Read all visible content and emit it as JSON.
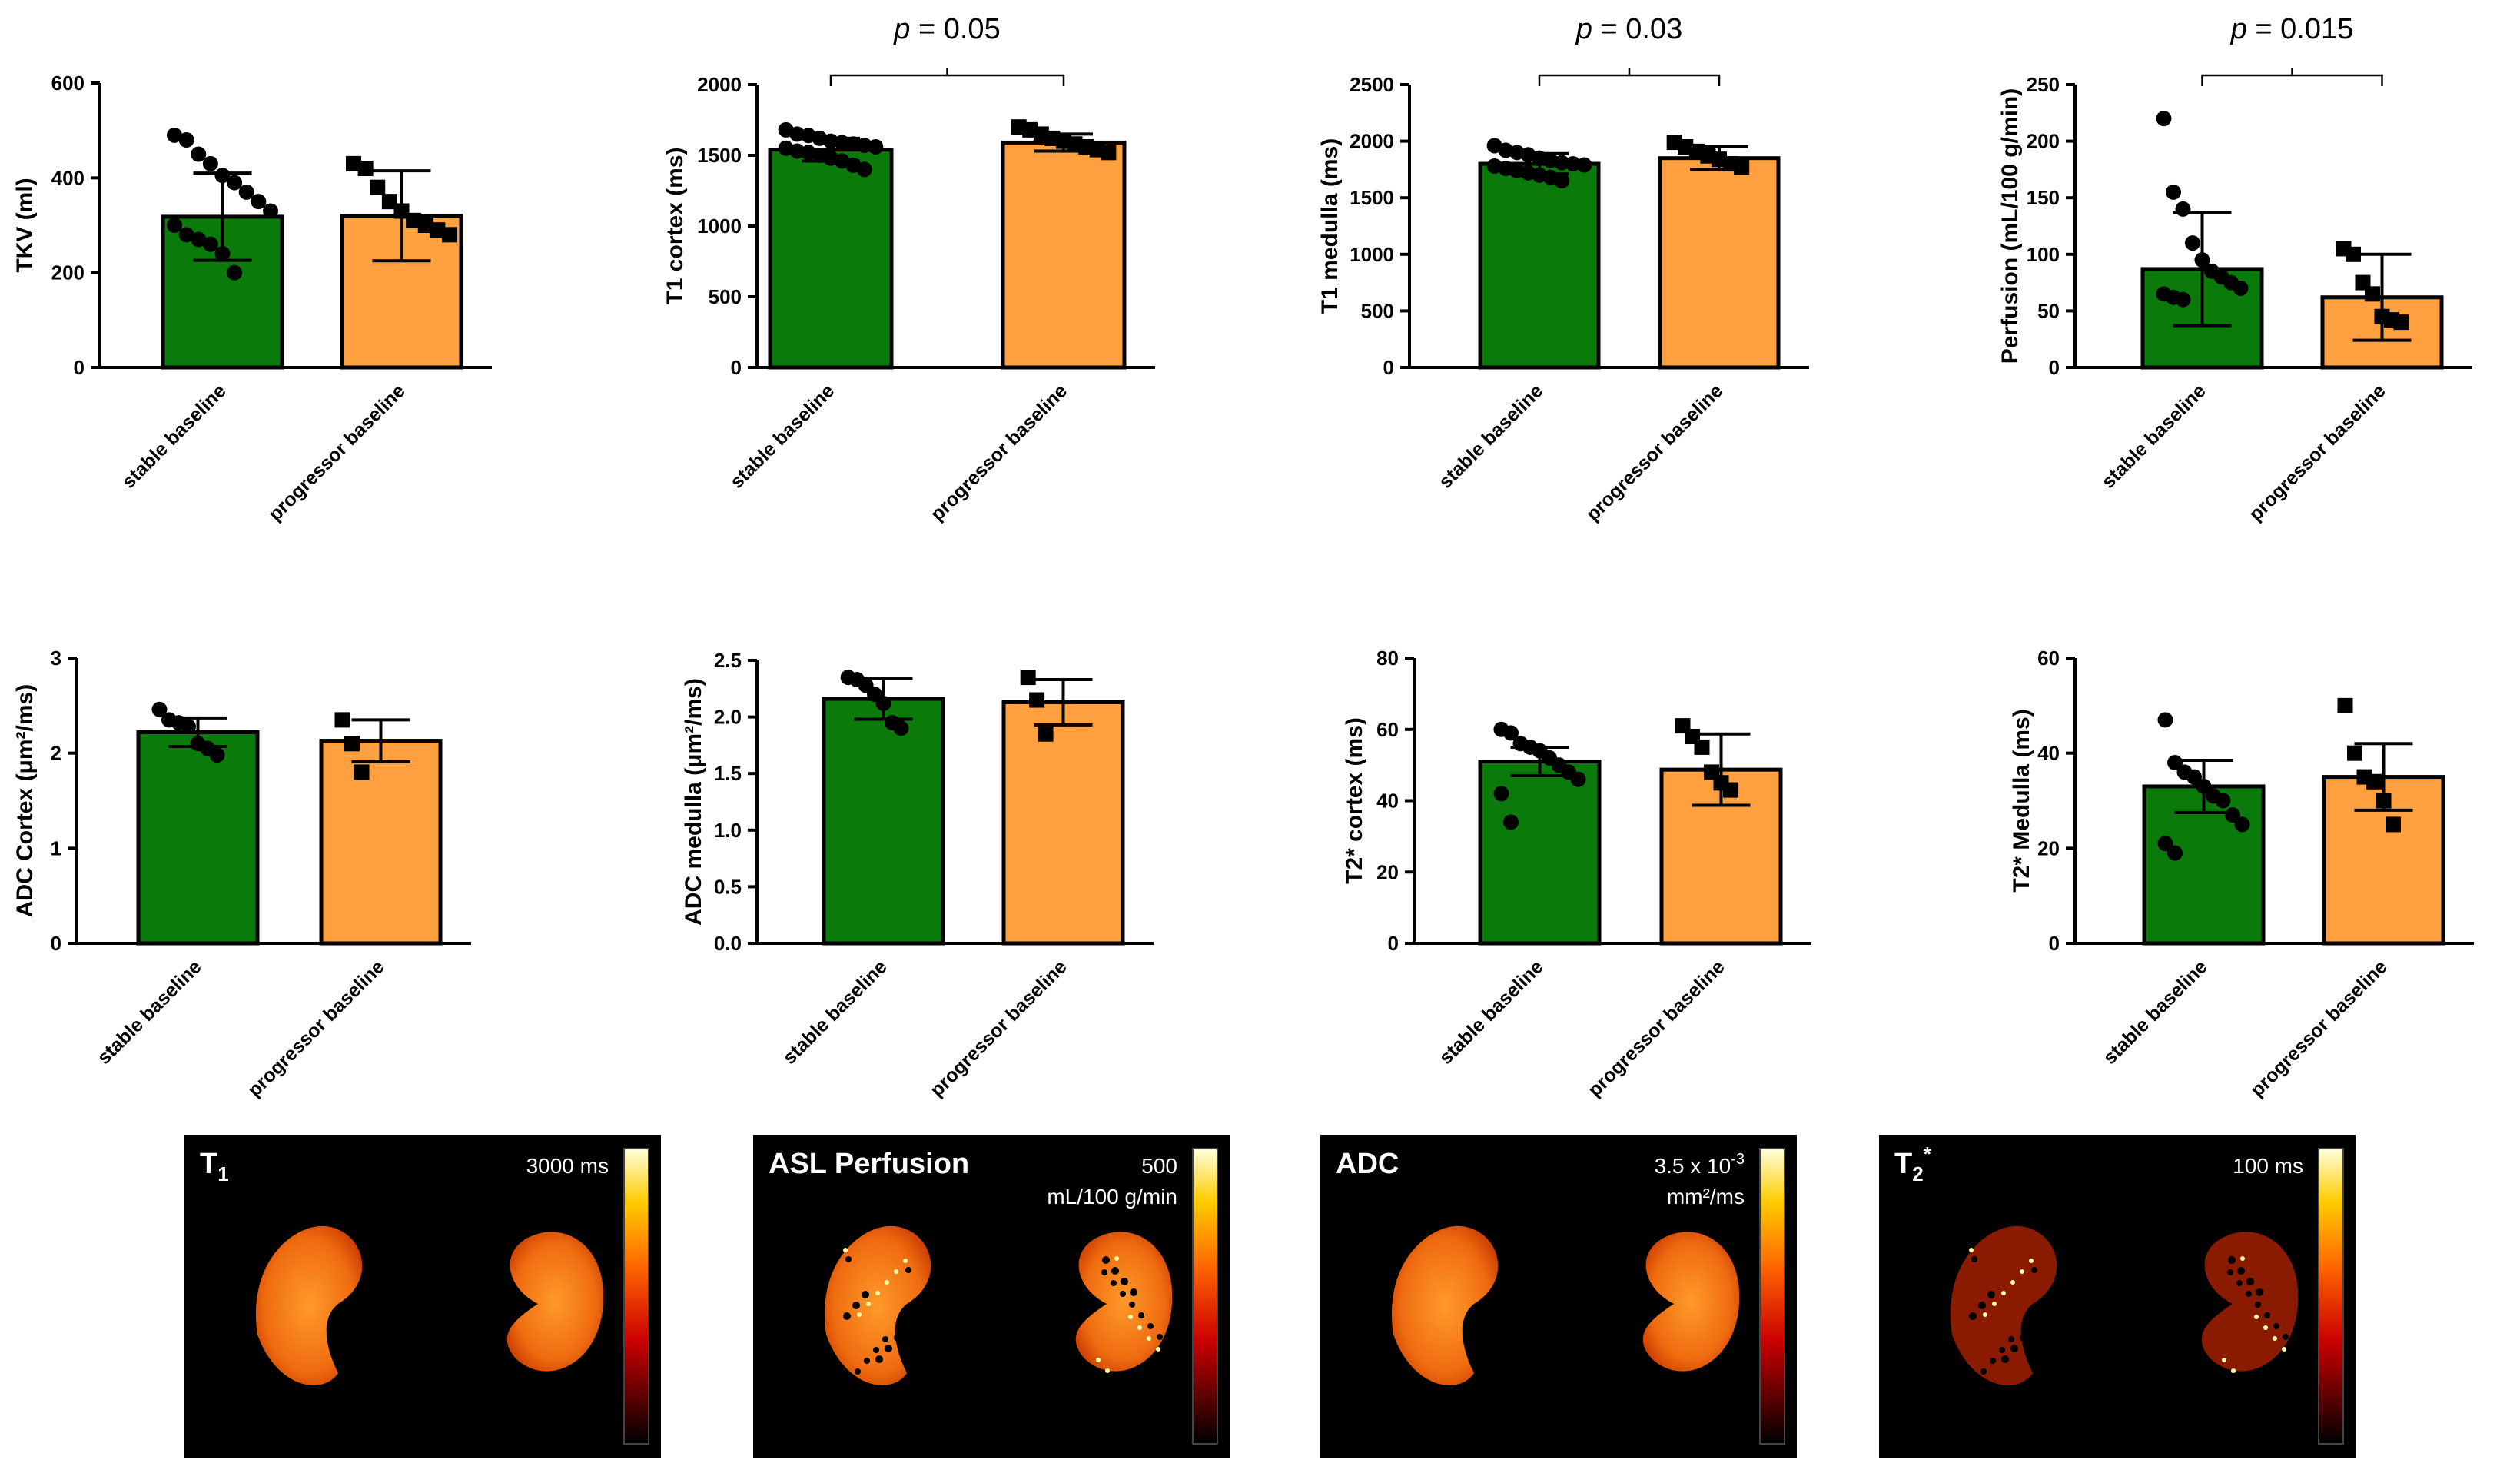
{
  "colors": {
    "stable": "#0a7a0a",
    "progressor": "#ffa040",
    "point": "#000000"
  },
  "chart_data": [
    {
      "type": "bar",
      "ylabel": "TKV (ml)",
      "ylim": [
        0,
        600
      ],
      "yticks": [
        "0",
        "200",
        "400",
        "600"
      ],
      "categories": [
        "stable baseline",
        "progressor baseline"
      ],
      "values": [
        318,
        320
      ],
      "errors": [
        92,
        95
      ],
      "points": [
        [
          490,
          480,
          450,
          430,
          405,
          390,
          370,
          350,
          330,
          300,
          280,
          270,
          260,
          240,
          200
        ],
        [
          430,
          420,
          380,
          350,
          330,
          310,
          300,
          290,
          280
        ]
      ],
      "pvalue": null
    },
    {
      "type": "bar",
      "ylabel": "T1 cortex (ms)",
      "ylim": [
        0,
        2000
      ],
      "yticks": [
        "0",
        "500",
        "1000",
        "1500",
        "2000"
      ],
      "categories": [
        "stable baseline",
        "progressor baseline"
      ],
      "values": [
        1540,
        1590
      ],
      "errors": [
        80,
        60
      ],
      "points": [
        [
          1680,
          1650,
          1640,
          1620,
          1600,
          1590,
          1580,
          1570,
          1560,
          1550,
          1530,
          1520,
          1500,
          1480,
          1460,
          1430,
          1400
        ],
        [
          1700,
          1680,
          1650,
          1620,
          1600,
          1580,
          1560,
          1540,
          1520
        ]
      ],
      "pvalue": "= 0.05"
    },
    {
      "type": "bar",
      "ylabel": "T1 medulla (ms)",
      "ylim": [
        0,
        2500
      ],
      "yticks": [
        "0",
        "500",
        "1000",
        "1500",
        "2000",
        "2500"
      ],
      "categories": [
        "stable baseline",
        "progressor baseline"
      ],
      "values": [
        1800,
        1850
      ],
      "errors": [
        90,
        100
      ],
      "points": [
        [
          1960,
          1920,
          1900,
          1880,
          1850,
          1830,
          1810,
          1800,
          1790,
          1780,
          1760,
          1740,
          1720,
          1700,
          1680,
          1650
        ],
        [
          1990,
          1950,
          1910,
          1870,
          1840,
          1800,
          1770
        ]
      ],
      "pvalue": "= 0.03"
    },
    {
      "type": "bar",
      "ylabel": "Perfusion (mL/100 g/min)",
      "ylim": [
        0,
        250
      ],
      "yticks": [
        "0",
        "50",
        "100",
        "150",
        "200",
        "250"
      ],
      "categories": [
        "stable baseline",
        "progressor baseline"
      ],
      "values": [
        87,
        62
      ],
      "errors": [
        50,
        38
      ],
      "points": [
        [
          220,
          155,
          140,
          110,
          95,
          85,
          80,
          75,
          70,
          65,
          62,
          60
        ],
        [
          105,
          100,
          75,
          65,
          45,
          42,
          40
        ]
      ],
      "pvalue": "= 0.015"
    },
    {
      "type": "bar",
      "ylabel": "ADC Cortex (μm²/ms)",
      "ylim": [
        0,
        3
      ],
      "yticks": [
        "0",
        "1",
        "2",
        "3"
      ],
      "categories": [
        "stable baseline",
        "progressor baseline"
      ],
      "values": [
        2.22,
        2.13
      ],
      "errors": [
        0.15,
        0.22
      ],
      "points": [
        [
          2.46,
          2.35,
          2.32,
          2.28,
          2.1,
          2.05,
          1.98
        ],
        [
          2.35,
          2.1,
          1.8
        ]
      ],
      "pvalue": null
    },
    {
      "type": "bar",
      "ylabel": "ADC medulla (μm²/ms)",
      "ylim": [
        0,
        2.5
      ],
      "yticks": [
        "0.0",
        "0.5",
        "1.0",
        "1.5",
        "2.0",
        "2.5"
      ],
      "categories": [
        "stable baseline",
        "progressor baseline"
      ],
      "values": [
        2.16,
        2.13
      ],
      "errors": [
        0.18,
        0.2
      ],
      "points": [
        [
          2.35,
          2.33,
          2.28,
          2.2,
          2.12,
          1.95,
          1.9
        ],
        [
          2.35,
          2.15,
          1.85
        ]
      ],
      "pvalue": null
    },
    {
      "type": "bar",
      "ylabel": "T2* cortex (ms)",
      "ylim": [
        0,
        80
      ],
      "yticks": [
        "0",
        "20",
        "40",
        "60",
        "80"
      ],
      "categories": [
        "stable baseline",
        "progressor baseline"
      ],
      "values": [
        51,
        48.7
      ],
      "errors": [
        4,
        10
      ],
      "points": [
        [
          60,
          59,
          56,
          55,
          54,
          52,
          50,
          48,
          46,
          42,
          34
        ],
        [
          61,
          58,
          55,
          48,
          45,
          43
        ]
      ],
      "pvalue": null
    },
    {
      "type": "bar",
      "ylabel": "T2* Medulla (ms)",
      "ylim": [
        0,
        60
      ],
      "yticks": [
        "0",
        "20",
        "40",
        "60"
      ],
      "categories": [
        "stable baseline",
        "progressor baseline"
      ],
      "values": [
        33,
        35
      ],
      "errors": [
        5.5,
        7
      ],
      "points": [
        [
          47,
          38,
          36,
          35,
          33,
          31,
          30,
          27,
          25,
          21,
          19
        ],
        [
          50,
          40,
          35,
          34,
          30,
          25
        ]
      ],
      "pvalue": null
    }
  ],
  "maps": [
    {
      "title": "T",
      "title_sub": "1",
      "title_sup": "",
      "scale_lines": [
        "3000 ms"
      ],
      "scale_sup": "",
      "scale_suffix": ""
    },
    {
      "title": "ASL Perfusion",
      "title_sub": "",
      "title_sup": "",
      "scale_lines": [
        "500",
        "mL/100 g/min"
      ],
      "scale_sup": "",
      "scale_suffix": ""
    },
    {
      "title": "ADC",
      "title_sub": "",
      "title_sup": "",
      "scale_lines": [
        "3.5 x 10",
        "mm²/ms"
      ],
      "scale_sup": "-3",
      "scale_suffix": ""
    },
    {
      "title": "T",
      "title_sub": "2",
      "title_sup": "*",
      "scale_lines": [
        "100 ms"
      ],
      "scale_sup": "",
      "scale_suffix": ""
    }
  ]
}
